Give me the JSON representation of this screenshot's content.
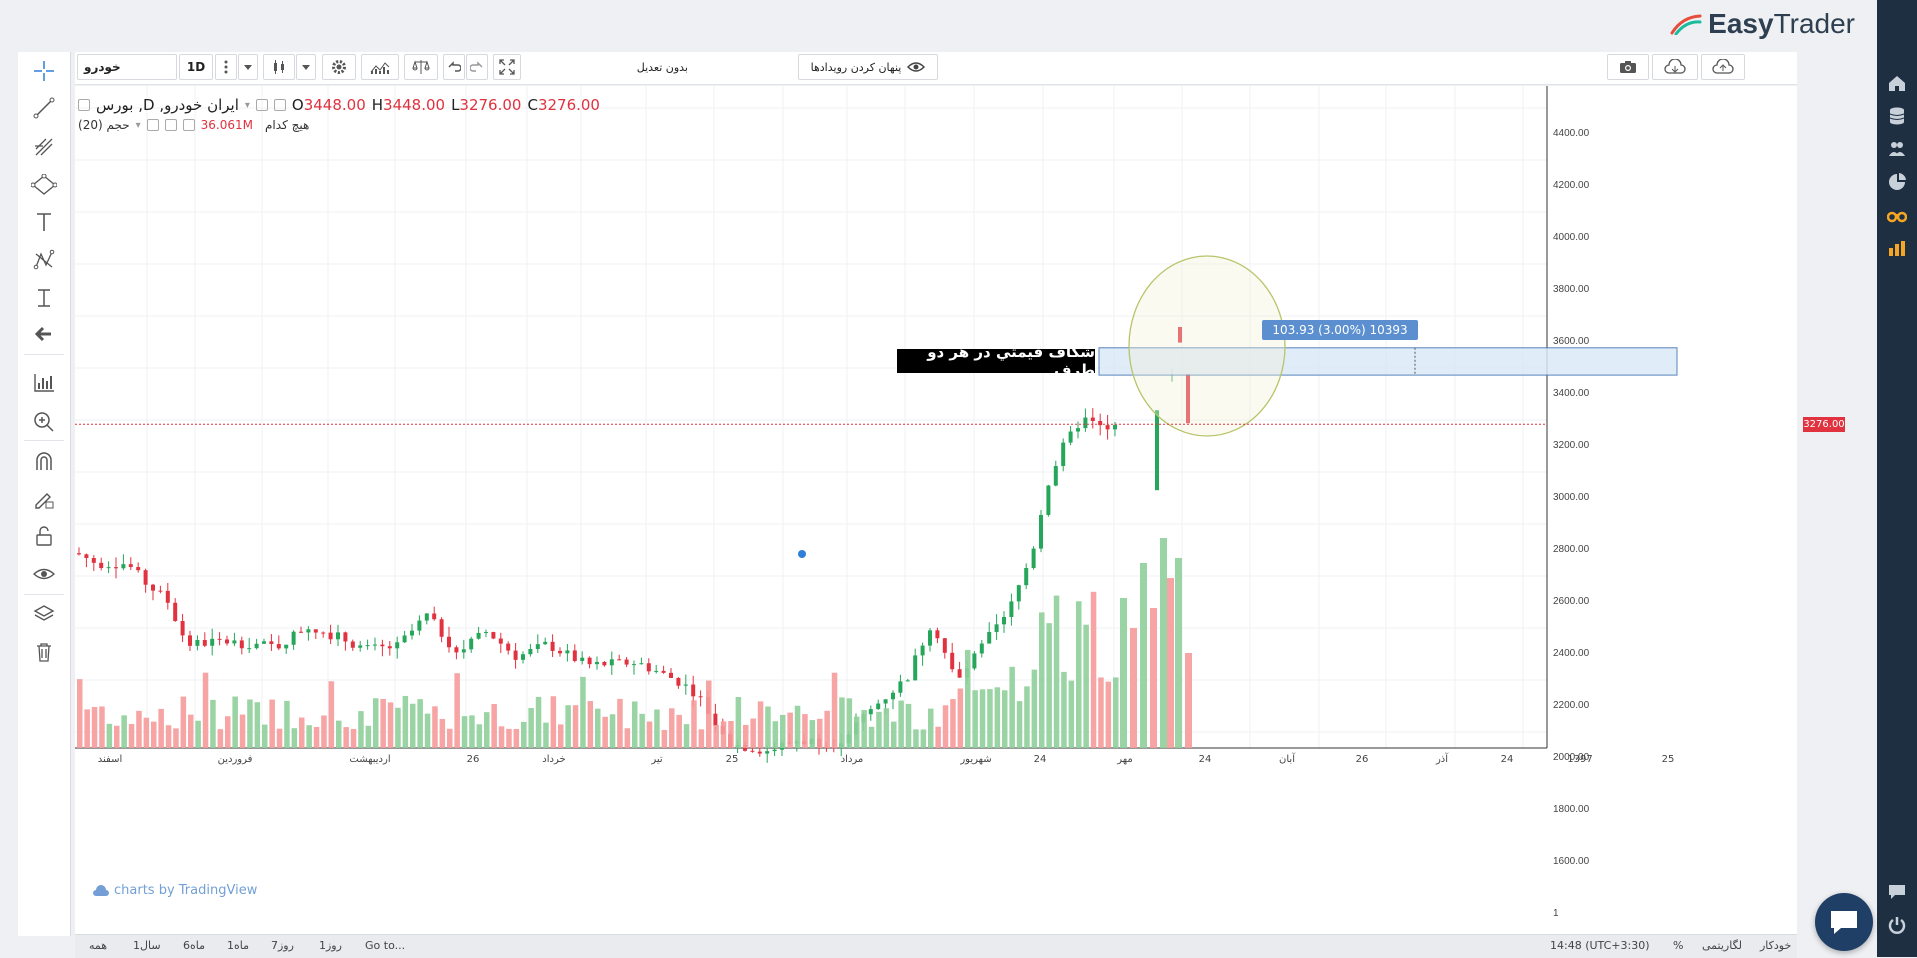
{
  "logo": {
    "text_bold": "Easy",
    "text_regular": "Trader"
  },
  "toolbar": {
    "symbol": "خودرو",
    "interval": "1D",
    "adjustment": "بدون تعدیل",
    "hide_events": "پنهان کردن رویدادها"
  },
  "legend": {
    "title": "ایران خودرو, D, بورس",
    "open_label": "O",
    "open_value": "3448.00",
    "high_label": "H",
    "high_value": "3448.00",
    "low_label": "L",
    "low_value": "3276.00",
    "close_label": "C",
    "close_value": "3276.00",
    "volume_label": "حجم (20)",
    "volume_value": "36.061M",
    "volume_note": "هیچ کدام"
  },
  "annotations": {
    "gap_text": "شکاف قیمتي در هر دو طرف",
    "measure_label": "103.93 (3.00%) 10393",
    "watermark": "charts by TradingView",
    "last_price": "3276.00"
  },
  "chart_data": {
    "type": "candlestick",
    "y_ticks": [
      "4400.00",
      "4200.00",
      "4000.00",
      "3800.00",
      "3600.00",
      "3400.00",
      "3200.00",
      "3000.00",
      "2800.00",
      "2600.00",
      "2400.00",
      "2200.00",
      "2000.00",
      "1800.00",
      "1600.00",
      "1"
    ],
    "x_ticks": [
      "اسفند",
      "فروردین",
      "اردیبهشت",
      "26",
      "خرداد",
      "تیر",
      "25",
      "مرداد",
      "شهریور",
      "24",
      "مهر",
      "24",
      "آبان",
      "26",
      "آذر",
      "24",
      "1397",
      "25"
    ],
    "last_price": 3276,
    "colors": {
      "up": "#26a65b",
      "down": "#e0323f",
      "vol_up": "#8fcf9a",
      "vol_down": "#f59a9a"
    }
  },
  "bottom": {
    "ranges": [
      "همه",
      "1سال",
      "6ماه",
      "1ماه",
      "7روز",
      "1روز"
    ],
    "goto": "Go to...",
    "time": "14:48 (UTC+3:30)",
    "percent": "%",
    "log": "لگاریتمی",
    "auto": "خودکار"
  },
  "icons": {
    "left": [
      "crosshair-icon",
      "trend-line-icon",
      "pitchfork-icon",
      "shapes-icon",
      "text-icon",
      "pattern-icon",
      "measure-icon",
      "back-arrow-icon",
      "ruler-icon",
      "zoom-icon",
      "magnet-icon",
      "lock-draw-icon",
      "unlock-icon",
      "eye-icon",
      "layers-icon",
      "trash-icon"
    ],
    "right": [
      "home-icon",
      "database-icon",
      "people-icon",
      "pie-icon",
      "binoculars-icon",
      "bar-chart-icon",
      "chat-icon",
      "power-icon"
    ]
  }
}
